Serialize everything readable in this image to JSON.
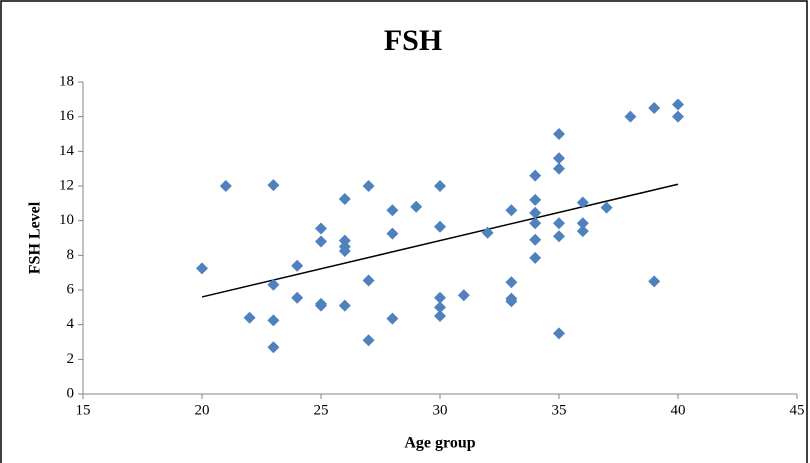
{
  "chart_data": {
    "type": "scatter",
    "title": "FSH",
    "x_label": "Age group",
    "y_label": "FSH Level",
    "x": [
      20,
      21,
      22,
      23,
      23,
      23,
      23,
      24,
      24,
      25,
      25,
      25,
      25,
      26,
      26,
      26,
      26,
      26,
      27,
      27,
      27,
      28,
      28,
      28,
      29,
      30,
      30,
      30,
      30,
      30,
      31,
      32,
      33,
      33,
      33,
      33,
      34,
      34,
      34,
      34,
      34,
      34,
      35,
      35,
      35,
      35,
      35,
      35,
      36,
      36,
      36,
      37,
      38,
      39,
      39,
      40,
      40
    ],
    "values": [
      7.25,
      12,
      4.4,
      12.05,
      6.3,
      4.25,
      2.7,
      7.4,
      5.55,
      9.55,
      8.8,
      5.2,
      5.1,
      11.25,
      8.85,
      8.5,
      8.25,
      5.1,
      12,
      6.55,
      3.1,
      10.6,
      9.25,
      4.35,
      10.8,
      12,
      9.65,
      5.55,
      5.0,
      4.5,
      5.7,
      9.3,
      10.6,
      6.45,
      5.5,
      5.35,
      12.6,
      11.2,
      10.45,
      9.85,
      8.9,
      7.85,
      15,
      13.6,
      13,
      9.85,
      9.1,
      3.5,
      11.05,
      9.85,
      9.4,
      10.75,
      16,
      16.5,
      6.5,
      16.7,
      16
    ],
    "color": "#4f81bd",
    "trendline": {
      "x": [
        20,
        40
      ],
      "y": [
        5.6,
        12.1
      ],
      "color": "#000000"
    },
    "xlim": [
      15,
      45
    ],
    "xticks": [
      15,
      20,
      25,
      30,
      35,
      40,
      45
    ],
    "ylim": [
      0,
      18
    ],
    "yticks": [
      0,
      2,
      4,
      6,
      8,
      10,
      12,
      14,
      16,
      18
    ]
  }
}
